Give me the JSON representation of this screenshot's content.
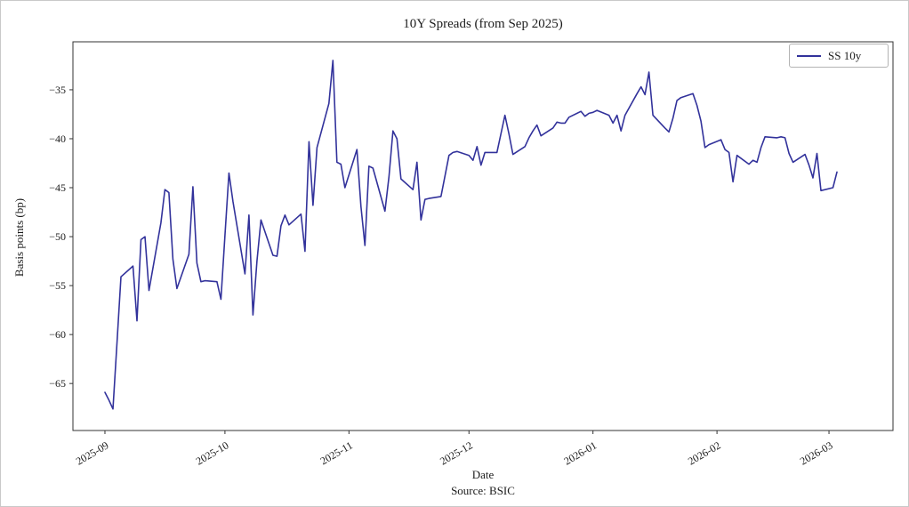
{
  "figure": {
    "title": "10Y Spreads (from Sep 2025)",
    "ylabel": "Basis points (bp)",
    "xlabel": "Date",
    "source_note": "Source: BSIC",
    "legend": {
      "label": "SS 10y"
    },
    "colors": {
      "line": "#32329b",
      "axis": "#333333",
      "text": "#1c1c1c",
      "legend_border": "#b3b3b3",
      "background": "#ffffff"
    }
  },
  "chart_data": {
    "type": "line",
    "title": "10Y Spreads (from Sep 2025)",
    "xlabel": "Date",
    "ylabel": "Basis points (bp)",
    "annotation": "Source: BSIC",
    "legend_position": "upper right",
    "grid": false,
    "ylim": [
      -69.8,
      -30.1
    ],
    "xlim_dates": [
      "2025-08-24",
      "2026-03-17"
    ],
    "y_ticks": [
      -35,
      -40,
      -45,
      -50,
      -55,
      -60,
      -65
    ],
    "y_tick_labels": [
      "−35",
      "−40",
      "−45",
      "−50",
      "−55",
      "−60",
      "−65"
    ],
    "x_ticks_dates": [
      "2025-09-01",
      "2025-10-01",
      "2025-11-01",
      "2025-12-01",
      "2026-01-01",
      "2026-02-01",
      "2026-03-01"
    ],
    "x_tick_labels": [
      "2025-09",
      "2025-10",
      "2025-11",
      "2025-12",
      "2026-01",
      "2026-02",
      "2026-03"
    ],
    "x_tick_rotation_deg": 30,
    "series": [
      {
        "name": "SS 10y",
        "color": "#32329b",
        "dates": [
          "2025-09-01",
          "2025-09-02",
          "2025-09-03",
          "2025-09-04",
          "2025-09-05",
          "2025-09-08",
          "2025-09-09",
          "2025-09-10",
          "2025-09-11",
          "2025-09-12",
          "2025-09-15",
          "2025-09-16",
          "2025-09-17",
          "2025-09-18",
          "2025-09-19",
          "2025-09-22",
          "2025-09-23",
          "2025-09-24",
          "2025-09-25",
          "2025-09-26",
          "2025-09-29",
          "2025-09-30",
          "2025-10-01",
          "2025-10-02",
          "2025-10-03",
          "2025-10-06",
          "2025-10-07",
          "2025-10-08",
          "2025-10-09",
          "2025-10-10",
          "2025-10-13",
          "2025-10-14",
          "2025-10-15",
          "2025-10-16",
          "2025-10-17",
          "2025-10-20",
          "2025-10-21",
          "2025-10-22",
          "2025-10-23",
          "2025-10-24",
          "2025-10-27",
          "2025-10-28",
          "2025-10-29",
          "2025-10-30",
          "2025-10-31",
          "2025-11-03",
          "2025-11-04",
          "2025-11-05",
          "2025-11-06",
          "2025-11-07",
          "2025-11-10",
          "2025-11-11",
          "2025-11-12",
          "2025-11-13",
          "2025-11-14",
          "2025-11-17",
          "2025-11-18",
          "2025-11-19",
          "2025-11-20",
          "2025-11-21",
          "2025-11-24",
          "2025-11-25",
          "2025-11-26",
          "2025-11-27",
          "2025-11-28",
          "2025-12-01",
          "2025-12-02",
          "2025-12-03",
          "2025-12-04",
          "2025-12-05",
          "2025-12-08",
          "2025-12-09",
          "2025-12-10",
          "2025-12-11",
          "2025-12-12",
          "2025-12-15",
          "2025-12-16",
          "2025-12-17",
          "2025-12-18",
          "2025-12-19",
          "2025-12-22",
          "2025-12-23",
          "2025-12-24",
          "2025-12-25",
          "2025-12-26",
          "2025-12-29",
          "2025-12-30",
          "2025-12-31",
          "2026-01-01",
          "2026-01-02",
          "2026-01-05",
          "2026-01-06",
          "2026-01-07",
          "2026-01-08",
          "2026-01-09",
          "2026-01-12",
          "2026-01-13",
          "2026-01-14",
          "2026-01-15",
          "2026-01-16",
          "2026-01-19",
          "2026-01-20",
          "2026-01-21",
          "2026-01-22",
          "2026-01-23",
          "2026-01-26",
          "2026-01-27",
          "2026-01-28",
          "2026-01-29",
          "2026-01-30",
          "2026-02-02",
          "2026-02-03",
          "2026-02-04",
          "2026-02-05",
          "2026-02-06",
          "2026-02-09",
          "2026-02-10",
          "2026-02-11",
          "2026-02-12",
          "2026-02-13",
          "2026-02-16",
          "2026-02-17",
          "2026-02-18",
          "2026-02-19",
          "2026-02-20",
          "2026-02-23",
          "2026-02-24",
          "2026-02-25",
          "2026-02-26",
          "2026-02-27",
          "2026-03-02",
          "2026-03-03"
        ],
        "values": [
          -65.9,
          -66.7,
          -67.6,
          -60.9,
          -54.1,
          -53.0,
          -58.6,
          -50.3,
          -50.0,
          -55.5,
          -48.6,
          -45.2,
          -45.5,
          -52.3,
          -55.3,
          -51.8,
          -44.9,
          -52.7,
          -54.6,
          -54.5,
          -54.6,
          -56.4,
          -49.9,
          -43.5,
          -46.4,
          -53.8,
          -47.8,
          -58.0,
          -52.5,
          -48.3,
          -51.9,
          -52.0,
          -48.9,
          -47.8,
          -48.8,
          -47.7,
          -51.5,
          -40.3,
          -46.8,
          -40.9,
          -36.4,
          -32.0,
          -42.4,
          -42.6,
          -45.0,
          -41.1,
          -46.9,
          -50.9,
          -42.8,
          -43.0,
          -47.4,
          -43.9,
          -39.2,
          -40.0,
          -44.1,
          -45.2,
          -42.4,
          -48.3,
          -46.2,
          -46.1,
          -45.9,
          -43.8,
          -41.7,
          -41.4,
          -41.3,
          -41.7,
          -42.2,
          -40.8,
          -42.7,
          -41.4,
          -41.4,
          -39.5,
          -37.6,
          -39.5,
          -41.6,
          -40.8,
          -39.9,
          -39.2,
          -38.6,
          -39.7,
          -38.9,
          -38.3,
          -38.4,
          -38.4,
          -37.8,
          -37.2,
          -37.7,
          -37.4,
          -37.3,
          -37.1,
          -37.6,
          -38.4,
          -37.6,
          -39.2,
          -37.6,
          -35.4,
          -34.7,
          -35.5,
          -33.2,
          -37.6,
          -38.9,
          -39.3,
          -37.9,
          -36.1,
          -35.8,
          -35.4,
          -36.6,
          -38.2,
          -40.9,
          -40.6,
          -40.1,
          -41.1,
          -41.4,
          -44.4,
          -41.7,
          -42.6,
          -42.2,
          -42.4,
          -40.9,
          -39.8,
          -39.9,
          -39.8,
          -39.9,
          -41.5,
          -42.4,
          -41.6,
          -42.7,
          -44.0,
          -41.5,
          -45.3,
          -45.0,
          -43.4
        ]
      }
    ]
  }
}
